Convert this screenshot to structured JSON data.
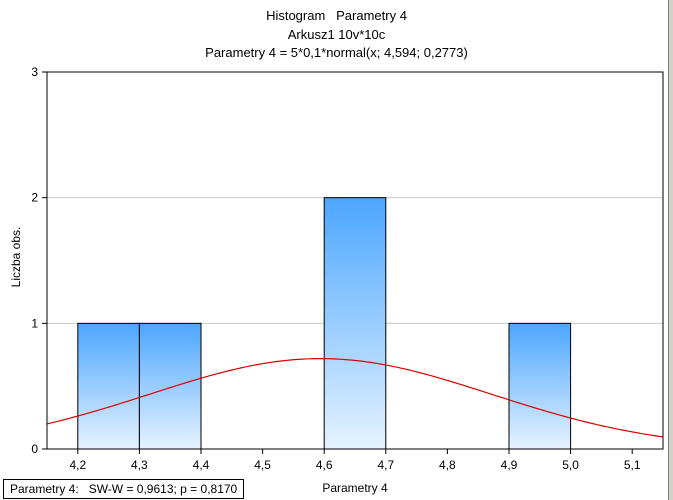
{
  "chart_data": {
    "type": "bar",
    "title_lines": [
      "Histogram   Parametry 4",
      "Arkusz1 10v*10c",
      "Parametry 4 = 5*0,1*normal(x; 4,594; 0,2773)"
    ],
    "xlabel": "Parametry 4",
    "ylabel": "Liczba obs.",
    "xlim": [
      4.15,
      5.15
    ],
    "ylim": [
      0,
      3
    ],
    "x_ticks": [
      "4,2",
      "4,3",
      "4,4",
      "4,5",
      "4,6",
      "4,7",
      "4,8",
      "4,9",
      "5,0",
      "5,1"
    ],
    "y_ticks": [
      "0",
      "1",
      "2",
      "3"
    ],
    "bins": [
      {
        "from": 4.2,
        "to": 4.3,
        "count": 1
      },
      {
        "from": 4.3,
        "to": 4.4,
        "count": 1
      },
      {
        "from": 4.6,
        "to": 4.7,
        "count": 2
      },
      {
        "from": 4.9,
        "to": 5.0,
        "count": 1
      }
    ],
    "normal_curve": {
      "n": 5,
      "bin_width": 0.1,
      "mean": 4.594,
      "sd": 0.2773,
      "color": "#dd0000"
    },
    "bar_colors": {
      "top": "#4ca6ff",
      "bottom": "#e6f3ff",
      "border": "#000000"
    },
    "grid": true,
    "stat_label": "Parametry 4:   SW-W = 0,9613; p = 0,8170"
  }
}
